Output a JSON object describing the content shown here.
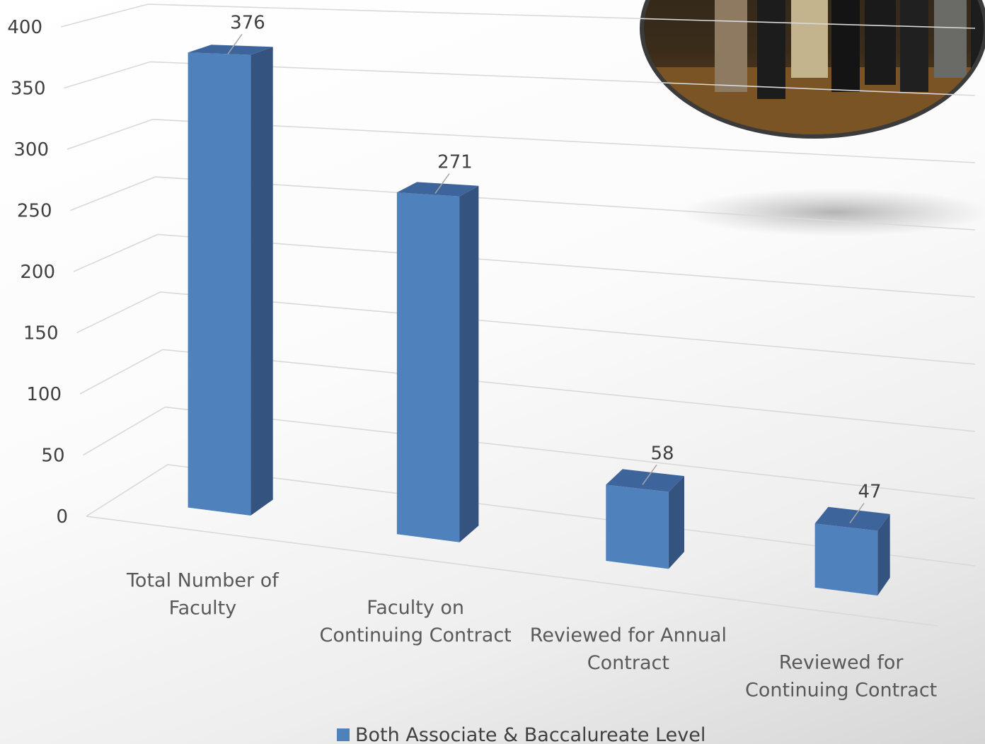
{
  "chart_data": {
    "type": "bar",
    "categories": [
      [
        "Total Number of",
        "Faculty"
      ],
      [
        "Faculty on",
        "Continuing Contract"
      ],
      [
        "Reviewed for Annual",
        "Contract"
      ],
      [
        "Reviewed for",
        "Continuing Contract"
      ]
    ],
    "series": [
      {
        "name": "Both Associate & Baccalureate Level",
        "values": [
          376,
          271,
          58,
          47
        ],
        "color": "#4f81bd"
      }
    ],
    "yticks": [
      0,
      50,
      100,
      150,
      200,
      250,
      300,
      350,
      400
    ],
    "ylim": [
      0,
      400
    ],
    "grid": true,
    "legend": "bottom",
    "style": "3d-column"
  },
  "photo": {
    "icon": "group-photo"
  }
}
